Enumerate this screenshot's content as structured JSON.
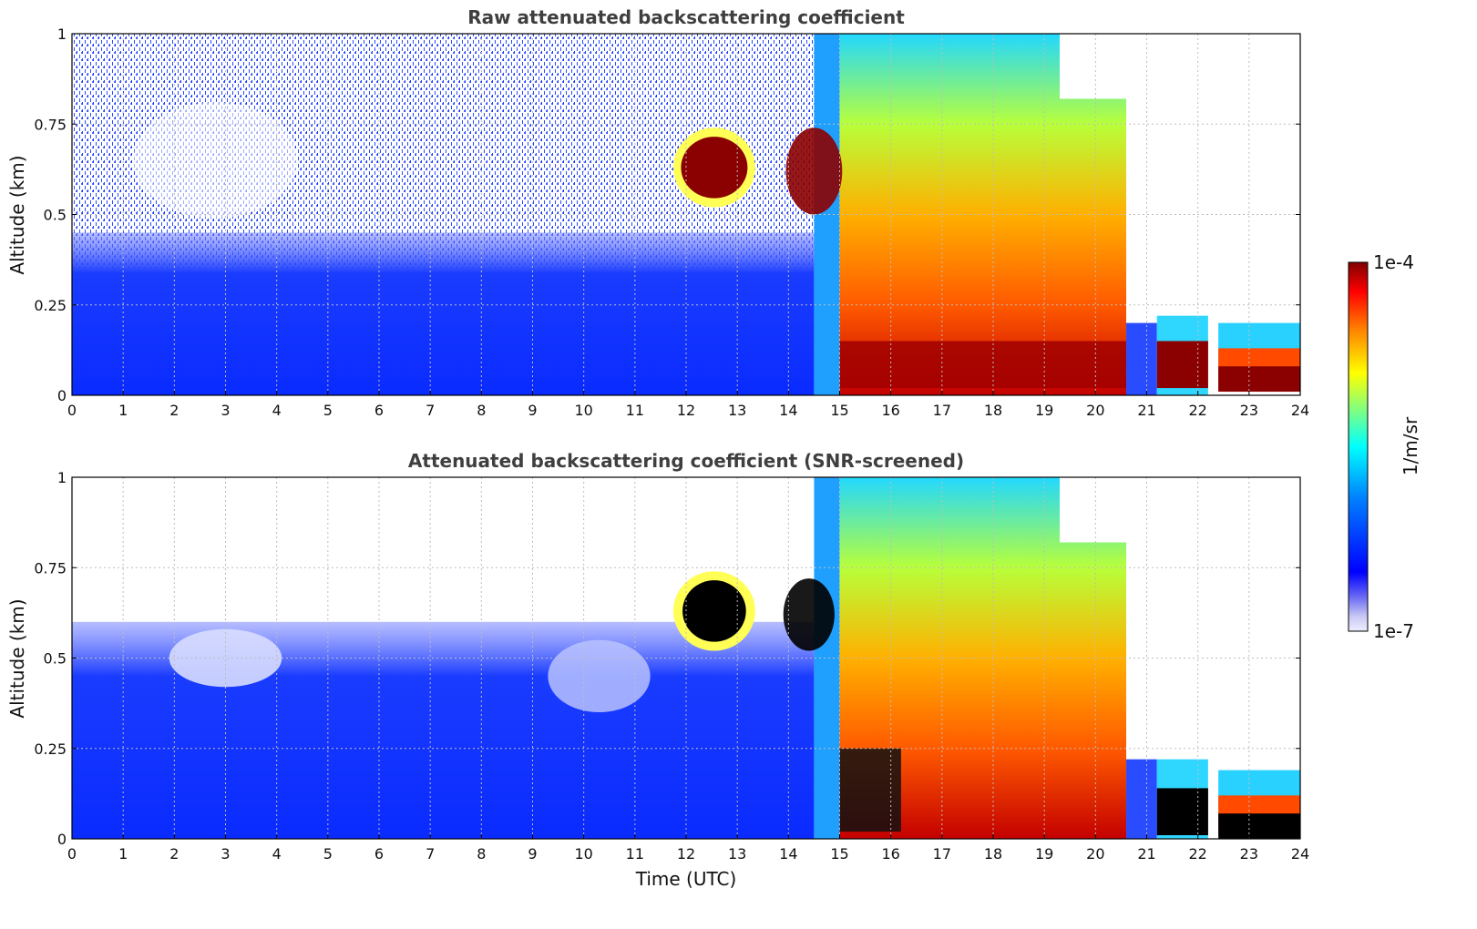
{
  "chart_data": [
    {
      "type": "heatmap",
      "title": "Raw attenuated backscattering coefficient",
      "xlabel": "",
      "ylabel": "Altitude (km)",
      "xlim": [
        0,
        24
      ],
      "ylim": [
        0,
        1
      ],
      "x_ticks": [
        "0",
        "1",
        "2",
        "3",
        "4",
        "5",
        "6",
        "7",
        "8",
        "9",
        "10",
        "11",
        "12",
        "13",
        "14",
        "15",
        "16",
        "17",
        "18",
        "19",
        "20",
        "21",
        "22",
        "23",
        "24"
      ],
      "y_ticks": [
        "0",
        "0.25",
        "0.5",
        "0.75",
        "1"
      ],
      "grid": true,
      "color_scale": "log, jet",
      "features": [
        {
          "desc": "noisy clear air",
          "x": [
            0,
            14.5
          ],
          "y": [
            0.4,
            1
          ],
          "level": "low"
        },
        {
          "desc": "aerosol layer",
          "x": [
            0,
            14.5
          ],
          "y": [
            0,
            0.4
          ],
          "level": "1e-6"
        },
        {
          "desc": "cloud",
          "x": [
            11.8,
            13.3
          ],
          "y": [
            0.55,
            0.7
          ],
          "level": "1e-4"
        },
        {
          "desc": "cloud",
          "x": [
            14.0,
            15.0
          ],
          "y": [
            0.5,
            0.73
          ],
          "level": "1e-4"
        },
        {
          "desc": "strong backscatter",
          "x": [
            15.0,
            20.6
          ],
          "y": [
            0,
            1
          ],
          "level": "1e-5 to 1e-4"
        },
        {
          "desc": "low cloud",
          "x": [
            21.2,
            22.2
          ],
          "y": [
            0,
            0.15
          ],
          "level": "1e-4"
        },
        {
          "desc": "low cloud",
          "x": [
            22.4,
            24
          ],
          "y": [
            0,
            0.15
          ],
          "level": "1e-4"
        }
      ]
    },
    {
      "type": "heatmap",
      "title": "Attenuated backscattering coefficient (SNR-screened)",
      "xlabel": "Time (UTC)",
      "ylabel": "Altitude (km)",
      "xlim": [
        0,
        24
      ],
      "ylim": [
        0,
        1
      ],
      "x_ticks": [
        "0",
        "1",
        "2",
        "3",
        "4",
        "5",
        "6",
        "7",
        "8",
        "9",
        "10",
        "11",
        "12",
        "13",
        "14",
        "15",
        "16",
        "17",
        "18",
        "19",
        "20",
        "21",
        "22",
        "23",
        "24"
      ],
      "y_ticks": [
        "0",
        "0.25",
        "0.5",
        "0.75",
        "1"
      ],
      "grid": true,
      "color_scale": "log, jet",
      "features": [
        {
          "desc": "aerosol layer",
          "x": [
            0,
            14.5
          ],
          "y": [
            0,
            0.6
          ],
          "level": "1e-6"
        },
        {
          "desc": "cloud (saturated)",
          "x": [
            11.8,
            13.3
          ],
          "y": [
            0.55,
            0.7
          ],
          "level": "above 1e-4"
        },
        {
          "desc": "strong backscatter",
          "x": [
            15.0,
            20.6
          ],
          "y": [
            0,
            1
          ],
          "level": "1e-5 to 1e-4"
        },
        {
          "desc": "low cloud (saturated)",
          "x": [
            21.2,
            24
          ],
          "y": [
            0,
            0.15
          ],
          "level": "above 1e-4"
        }
      ]
    }
  ],
  "colorbar": {
    "label": "1/m/sr",
    "max_label": "1e-4",
    "min_label": "1e-7",
    "scale": "log",
    "colormap": "jet"
  }
}
